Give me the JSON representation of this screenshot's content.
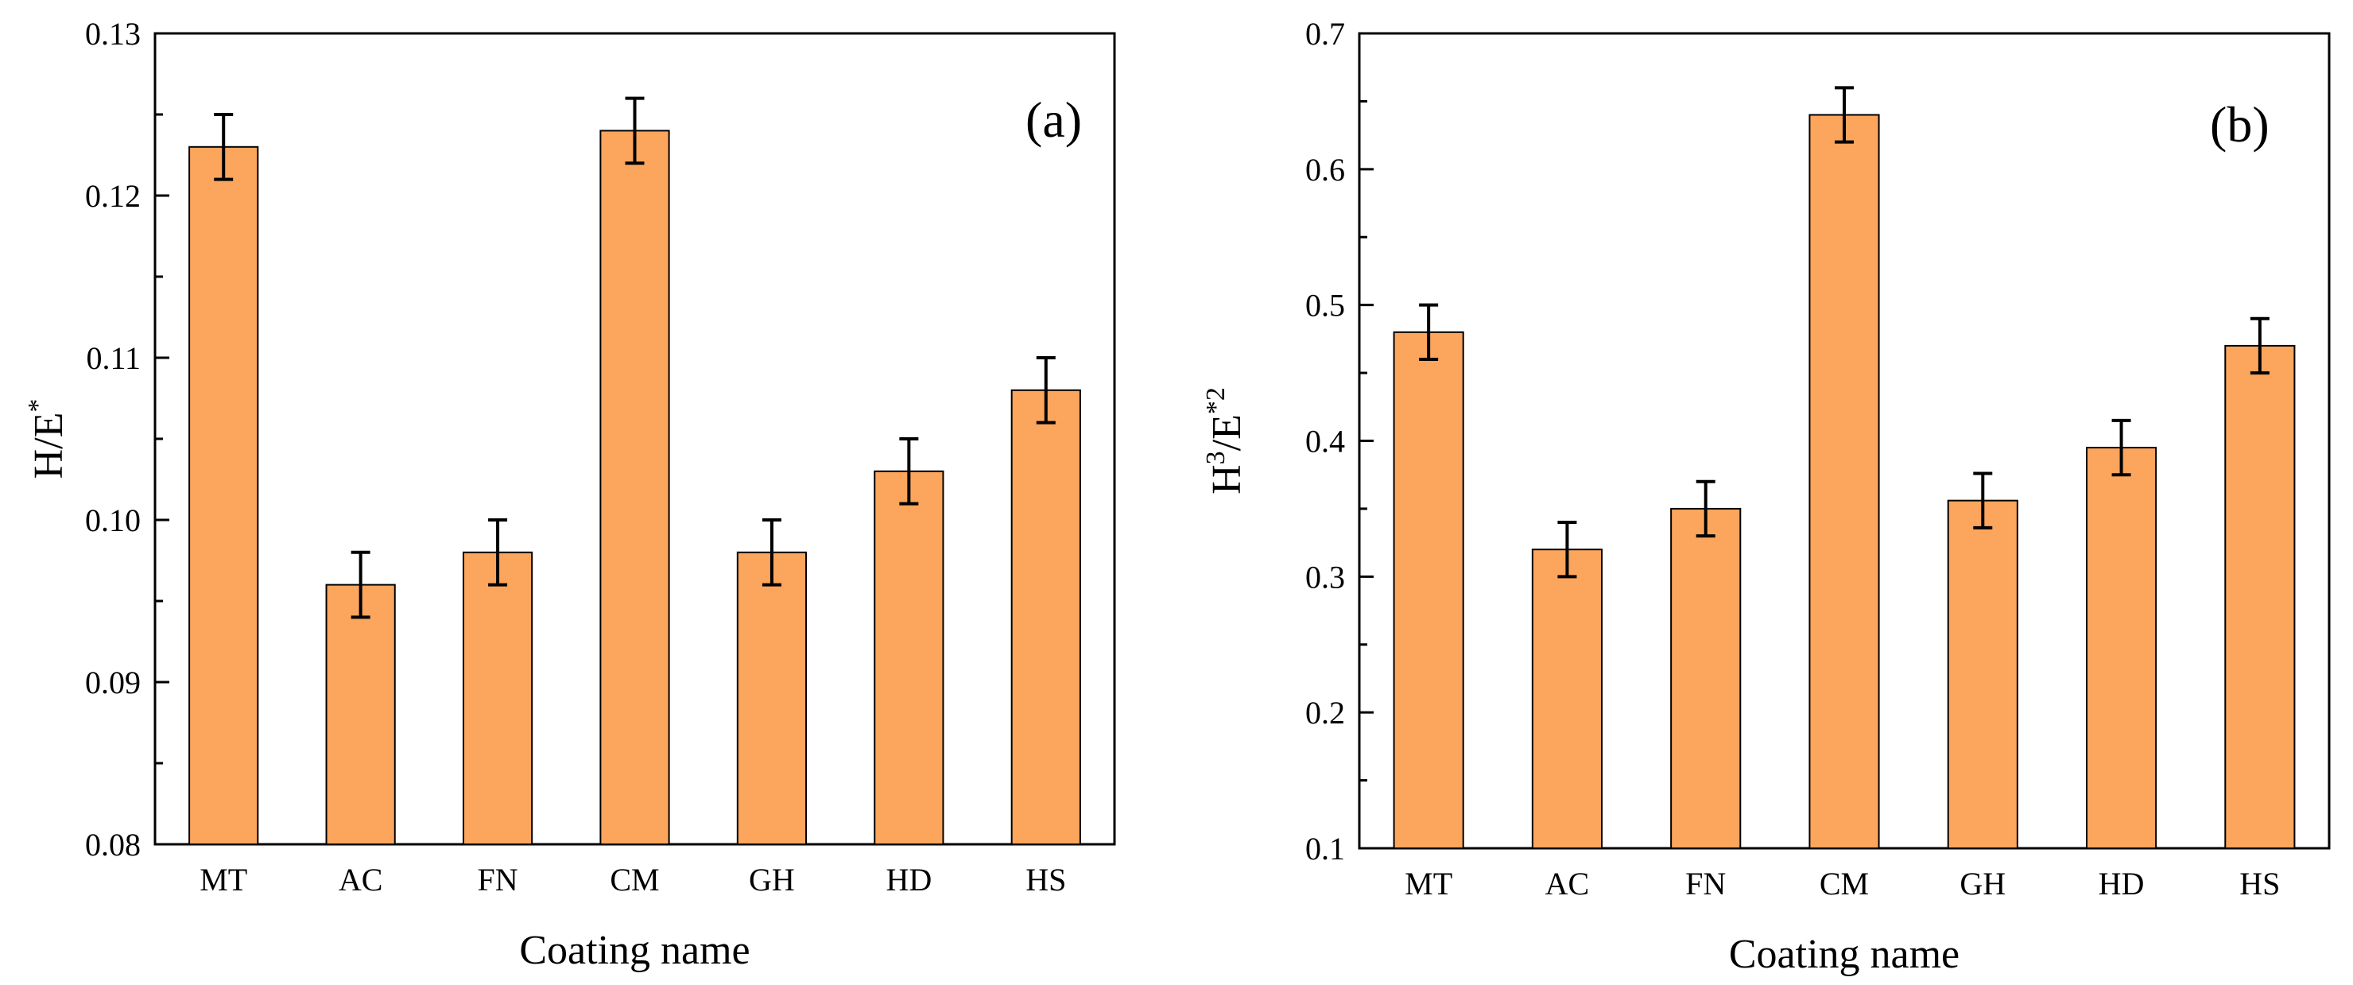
{
  "chart_data": [
    {
      "id": "a",
      "type": "bar",
      "panel_label": "(a)",
      "categories": [
        "MT",
        "AC",
        "FN",
        "CM",
        "GH",
        "HD",
        "HS"
      ],
      "values": [
        0.123,
        0.096,
        0.098,
        0.124,
        0.098,
        0.103,
        0.108
      ],
      "errors": [
        0.002,
        0.002,
        0.002,
        0.002,
        0.002,
        0.002,
        0.002
      ],
      "xlabel": "Coating name",
      "ylabel_main": "H/E",
      "ylabel_sup": "*",
      "ylabel_rest": "",
      "ylabel_sup2": "",
      "ylim": [
        0.08,
        0.13
      ],
      "yticks": [
        "0.08",
        "0.09",
        "0.10",
        "0.11",
        "0.12",
        "0.13"
      ],
      "bar_color": "#fca55c",
      "grid": false
    },
    {
      "id": "b",
      "type": "bar",
      "panel_label": "(b)",
      "categories": [
        "MT",
        "AC",
        "FN",
        "CM",
        "GH",
        "HD",
        "HS"
      ],
      "values": [
        0.48,
        0.32,
        0.35,
        0.64,
        0.356,
        0.395,
        0.47
      ],
      "errors": [
        0.02,
        0.02,
        0.02,
        0.02,
        0.02,
        0.02,
        0.02
      ],
      "xlabel": "Coating name",
      "ylabel_main": "H",
      "ylabel_sup": "3",
      "ylabel_rest": "/E",
      "ylabel_sup2": "*2",
      "ylim": [
        0.1,
        0.7
      ],
      "yticks": [
        "0.1",
        "0.2",
        "0.3",
        "0.4",
        "0.5",
        "0.6",
        "0.7"
      ],
      "bar_color": "#fca55c",
      "grid": false
    }
  ]
}
